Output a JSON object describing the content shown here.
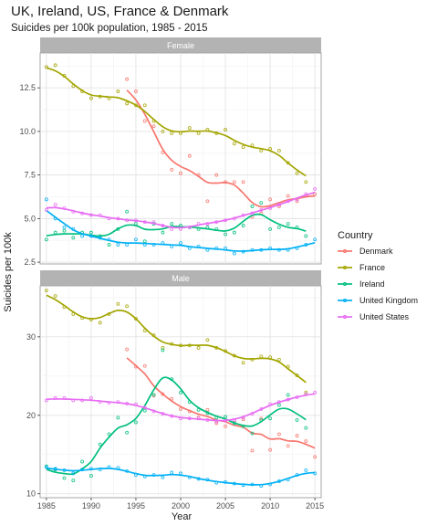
{
  "chart_data": {
    "type": "line",
    "title": "UK, Ireland, US, France & Denmark",
    "subtitle": "Suicides per 100k population, 1985 - 2015",
    "xlabel": "Year",
    "ylabel": "Suicides per 100k",
    "legend_title": "Country",
    "legend_position": "right",
    "grid": true,
    "x_ticks": [
      "1985",
      "1990",
      "1995",
      "2000",
      "2005",
      "2010",
      "2015"
    ],
    "x_tick_values": [
      1985,
      1990,
      1995,
      2000,
      2005,
      2010,
      2015
    ],
    "xlim": [
      1984.3,
      2015.7
    ],
    "series_colors": {
      "Denmark": "#F8766D",
      "France": "#A3A500",
      "Ireland": "#00BF7D",
      "United Kingdom": "#00B0F6",
      "United States": "#E76BF3"
    },
    "legend": [
      "Denmark",
      "France",
      "Ireland",
      "United Kingdom",
      "United States"
    ],
    "panels": [
      {
        "strip": "Female",
        "ylim": [
          2.4,
          14.5
        ],
        "y_ticks": [
          "2.5",
          "5.0",
          "7.5",
          "10.0",
          "12.5"
        ],
        "y_tick_values": [
          2.5,
          5.0,
          7.5,
          10.0,
          12.5
        ],
        "series": [
          {
            "name": "Denmark",
            "years": [
              1994,
              1995,
              1996,
              1997,
              1998,
              1999,
              2000,
              2001,
              2002,
              2003,
              2004,
              2005,
              2006,
              2007,
              2008,
              2009,
              2010,
              2011,
              2012,
              2013,
              2014,
              2015
            ],
            "values": [
              13.0,
              12.3,
              10.6,
              10.3,
              8.8,
              7.8,
              7.6,
              8.6,
              7.5,
              6.0,
              7.5,
              7.1,
              7.1,
              7.1,
              5.1,
              5.3,
              6.1,
              5.7,
              6.3,
              6.0,
              6.3,
              6.4
            ]
          },
          {
            "name": "France",
            "years": [
              1985,
              1986,
              1987,
              1988,
              1989,
              1990,
              1991,
              1992,
              1993,
              1994,
              1995,
              1996,
              1997,
              1998,
              1999,
              2000,
              2001,
              2002,
              2003,
              2004,
              2005,
              2006,
              2007,
              2008,
              2009,
              2010,
              2011,
              2012,
              2013,
              2014
            ],
            "values": [
              13.7,
              13.8,
              13.2,
              12.6,
              12.3,
              11.9,
              12.0,
              11.9,
              12.3,
              11.6,
              11.5,
              11.5,
              10.6,
              10.0,
              9.9,
              9.9,
              10.2,
              9.9,
              10.1,
              9.9,
              10.1,
              9.3,
              9.1,
              9.2,
              8.9,
              9.0,
              8.9,
              8.2,
              7.6,
              7.1
            ]
          },
          {
            "name": "Ireland",
            "years": [
              1985,
              1986,
              1987,
              1988,
              1989,
              1990,
              1991,
              1992,
              1993,
              1994,
              1995,
              1996,
              1997,
              1998,
              1999,
              2000,
              2001,
              2002,
              2003,
              2004,
              2005,
              2006,
              2007,
              2008,
              2009,
              2010,
              2011,
              2012,
              2013,
              2014
            ],
            "values": [
              3.8,
              4.2,
              4.3,
              3.9,
              4.2,
              4.2,
              4.0,
              3.5,
              4.4,
              5.4,
              4.7,
              3.7,
              4.7,
              4.2,
              4.7,
              4.6,
              4.5,
              4.4,
              4.5,
              4.4,
              4.1,
              4.2,
              4.6,
              5.7,
              5.9,
              4.4,
              4.5,
              4.7,
              4.5,
              4.0
            ]
          },
          {
            "name": "United Kingdom",
            "years": [
              1985,
              1986,
              1987,
              1988,
              1989,
              1990,
              1991,
              1992,
              1993,
              1994,
              1995,
              1996,
              1997,
              1998,
              1999,
              2000,
              2001,
              2002,
              2003,
              2004,
              2005,
              2006,
              2007,
              2008,
              2009,
              2010,
              2011,
              2012,
              2013,
              2014,
              2015
            ],
            "values": [
              6.1,
              5.0,
              4.5,
              4.4,
              4.0,
              4.0,
              3.9,
              3.8,
              3.5,
              3.5,
              3.8,
              3.5,
              3.5,
              3.6,
              3.4,
              3.6,
              3.3,
              3.4,
              3.2,
              3.3,
              3.3,
              3.0,
              3.1,
              3.2,
              3.2,
              3.3,
              3.2,
              3.2,
              3.3,
              3.5,
              3.8
            ]
          },
          {
            "name": "United States",
            "years": [
              1985,
              1986,
              1987,
              1988,
              1989,
              1990,
              1991,
              1992,
              1993,
              1994,
              1995,
              1996,
              1997,
              1998,
              1999,
              2000,
              2001,
              2002,
              2003,
              2004,
              2005,
              2006,
              2007,
              2008,
              2009,
              2010,
              2011,
              2012,
              2013,
              2014,
              2015
            ],
            "values": [
              5.5,
              5.8,
              5.6,
              5.4,
              5.3,
              5.2,
              5.2,
              5.0,
              5.0,
              4.9,
              4.9,
              4.8,
              4.8,
              4.6,
              4.4,
              4.4,
              4.5,
              4.7,
              4.7,
              4.8,
              4.9,
              5.0,
              5.2,
              5.3,
              5.5,
              5.6,
              5.8,
              6.0,
              6.1,
              6.4,
              6.7
            ]
          }
        ]
      },
      {
        "strip": "Male",
        "ylim": [
          9.5,
          36.5
        ],
        "y_ticks": [
          "10",
          "20",
          "30"
        ],
        "y_tick_values": [
          10,
          20,
          30
        ],
        "series": [
          {
            "name": "Denmark",
            "years": [
              1994,
              1995,
              1996,
              1997,
              1998,
              1999,
              2000,
              2001,
              2002,
              2003,
              2004,
              2005,
              2006,
              2007,
              2008,
              2009,
              2010,
              2011,
              2012,
              2013,
              2014,
              2015
            ],
            "values": [
              28.4,
              26.2,
              26.3,
              22.5,
              22.7,
              22.1,
              20.8,
              20.5,
              19.7,
              20.7,
              19.0,
              18.6,
              19.3,
              19.5,
              15.5,
              19.6,
              15.6,
              17.6,
              16.1,
              17.4,
              16.7,
              14.7
            ]
          },
          {
            "name": "France",
            "years": [
              1985,
              1986,
              1987,
              1988,
              1989,
              1990,
              1991,
              1992,
              1993,
              1994,
              1995,
              1996,
              1997,
              1998,
              1999,
              2000,
              2001,
              2002,
              2003,
              2004,
              2005,
              2006,
              2007,
              2008,
              2009,
              2010,
              2011,
              2012,
              2013,
              2014
            ],
            "values": [
              35.9,
              35.2,
              33.8,
              32.9,
              32.4,
              32.2,
              31.8,
              32.9,
              34.2,
              33.9,
              32.3,
              30.8,
              30.2,
              28.6,
              29.1,
              28.9,
              28.9,
              28.6,
              29.6,
              28.6,
              28.2,
              27.6,
              26.7,
              27.1,
              27.5,
              27.4,
              27.1,
              26.2,
              25.1,
              22.9
            ]
          },
          {
            "name": "Ireland",
            "years": [
              1985,
              1986,
              1987,
              1988,
              1989,
              1990,
              1991,
              1992,
              1993,
              1994,
              1995,
              1996,
              1997,
              1998,
              1999,
              2000,
              2001,
              2002,
              2003,
              2004,
              2005,
              2006,
              2007,
              2008,
              2009,
              2010,
              2011,
              2012,
              2013,
              2014
            ],
            "values": [
              13.5,
              13.1,
              12.0,
              11.7,
              14.1,
              12.3,
              16.3,
              17.6,
              19.7,
              17.8,
              19.1,
              20.6,
              22.6,
              28.3,
              24.6,
              22.9,
              21.7,
              20.7,
              20.3,
              19.7,
              19.8,
              19.0,
              18.6,
              17.7,
              19.4,
              19.6,
              21.3,
              22.6,
              19.4,
              18.4
            ]
          },
          {
            "name": "United Kingdom",
            "years": [
              1985,
              1986,
              1987,
              1988,
              1989,
              1990,
              1991,
              1992,
              1993,
              1994,
              1995,
              1996,
              1997,
              1998,
              1999,
              2000,
              2001,
              2002,
              2003,
              2004,
              2005,
              2006,
              2007,
              2008,
              2009,
              2010,
              2011,
              2012,
              2013,
              2014,
              2015
            ],
            "values": [
              13.4,
              13.2,
              13.0,
              12.6,
              13.1,
              13.2,
              13.1,
              13.4,
              13.3,
              12.9,
              12.4,
              12.2,
              12.4,
              12.1,
              12.7,
              12.6,
              12.1,
              11.9,
              11.8,
              11.4,
              11.5,
              11.3,
              11.1,
              11.2,
              11.0,
              11.2,
              11.6,
              11.8,
              12.4,
              13.0,
              12.6
            ]
          },
          {
            "name": "United States",
            "years": [
              1985,
              1986,
              1987,
              1988,
              1989,
              1990,
              1991,
              1992,
              1993,
              1994,
              1995,
              1996,
              1997,
              1998,
              1999,
              2000,
              2001,
              2002,
              2003,
              2004,
              2005,
              2006,
              2007,
              2008,
              2009,
              2010,
              2011,
              2012,
              2013,
              2014,
              2015
            ],
            "values": [
              21.9,
              22.2,
              22.2,
              21.9,
              21.9,
              22.2,
              21.7,
              21.6,
              21.7,
              21.5,
              21.4,
              21.0,
              20.5,
              20.2,
              19.9,
              19.6,
              19.6,
              19.6,
              19.4,
              19.2,
              19.3,
              19.4,
              19.7,
              20.2,
              20.8,
              21.4,
              21.7,
              22.0,
              22.3,
              22.7,
              22.9
            ]
          }
        ]
      }
    ]
  }
}
